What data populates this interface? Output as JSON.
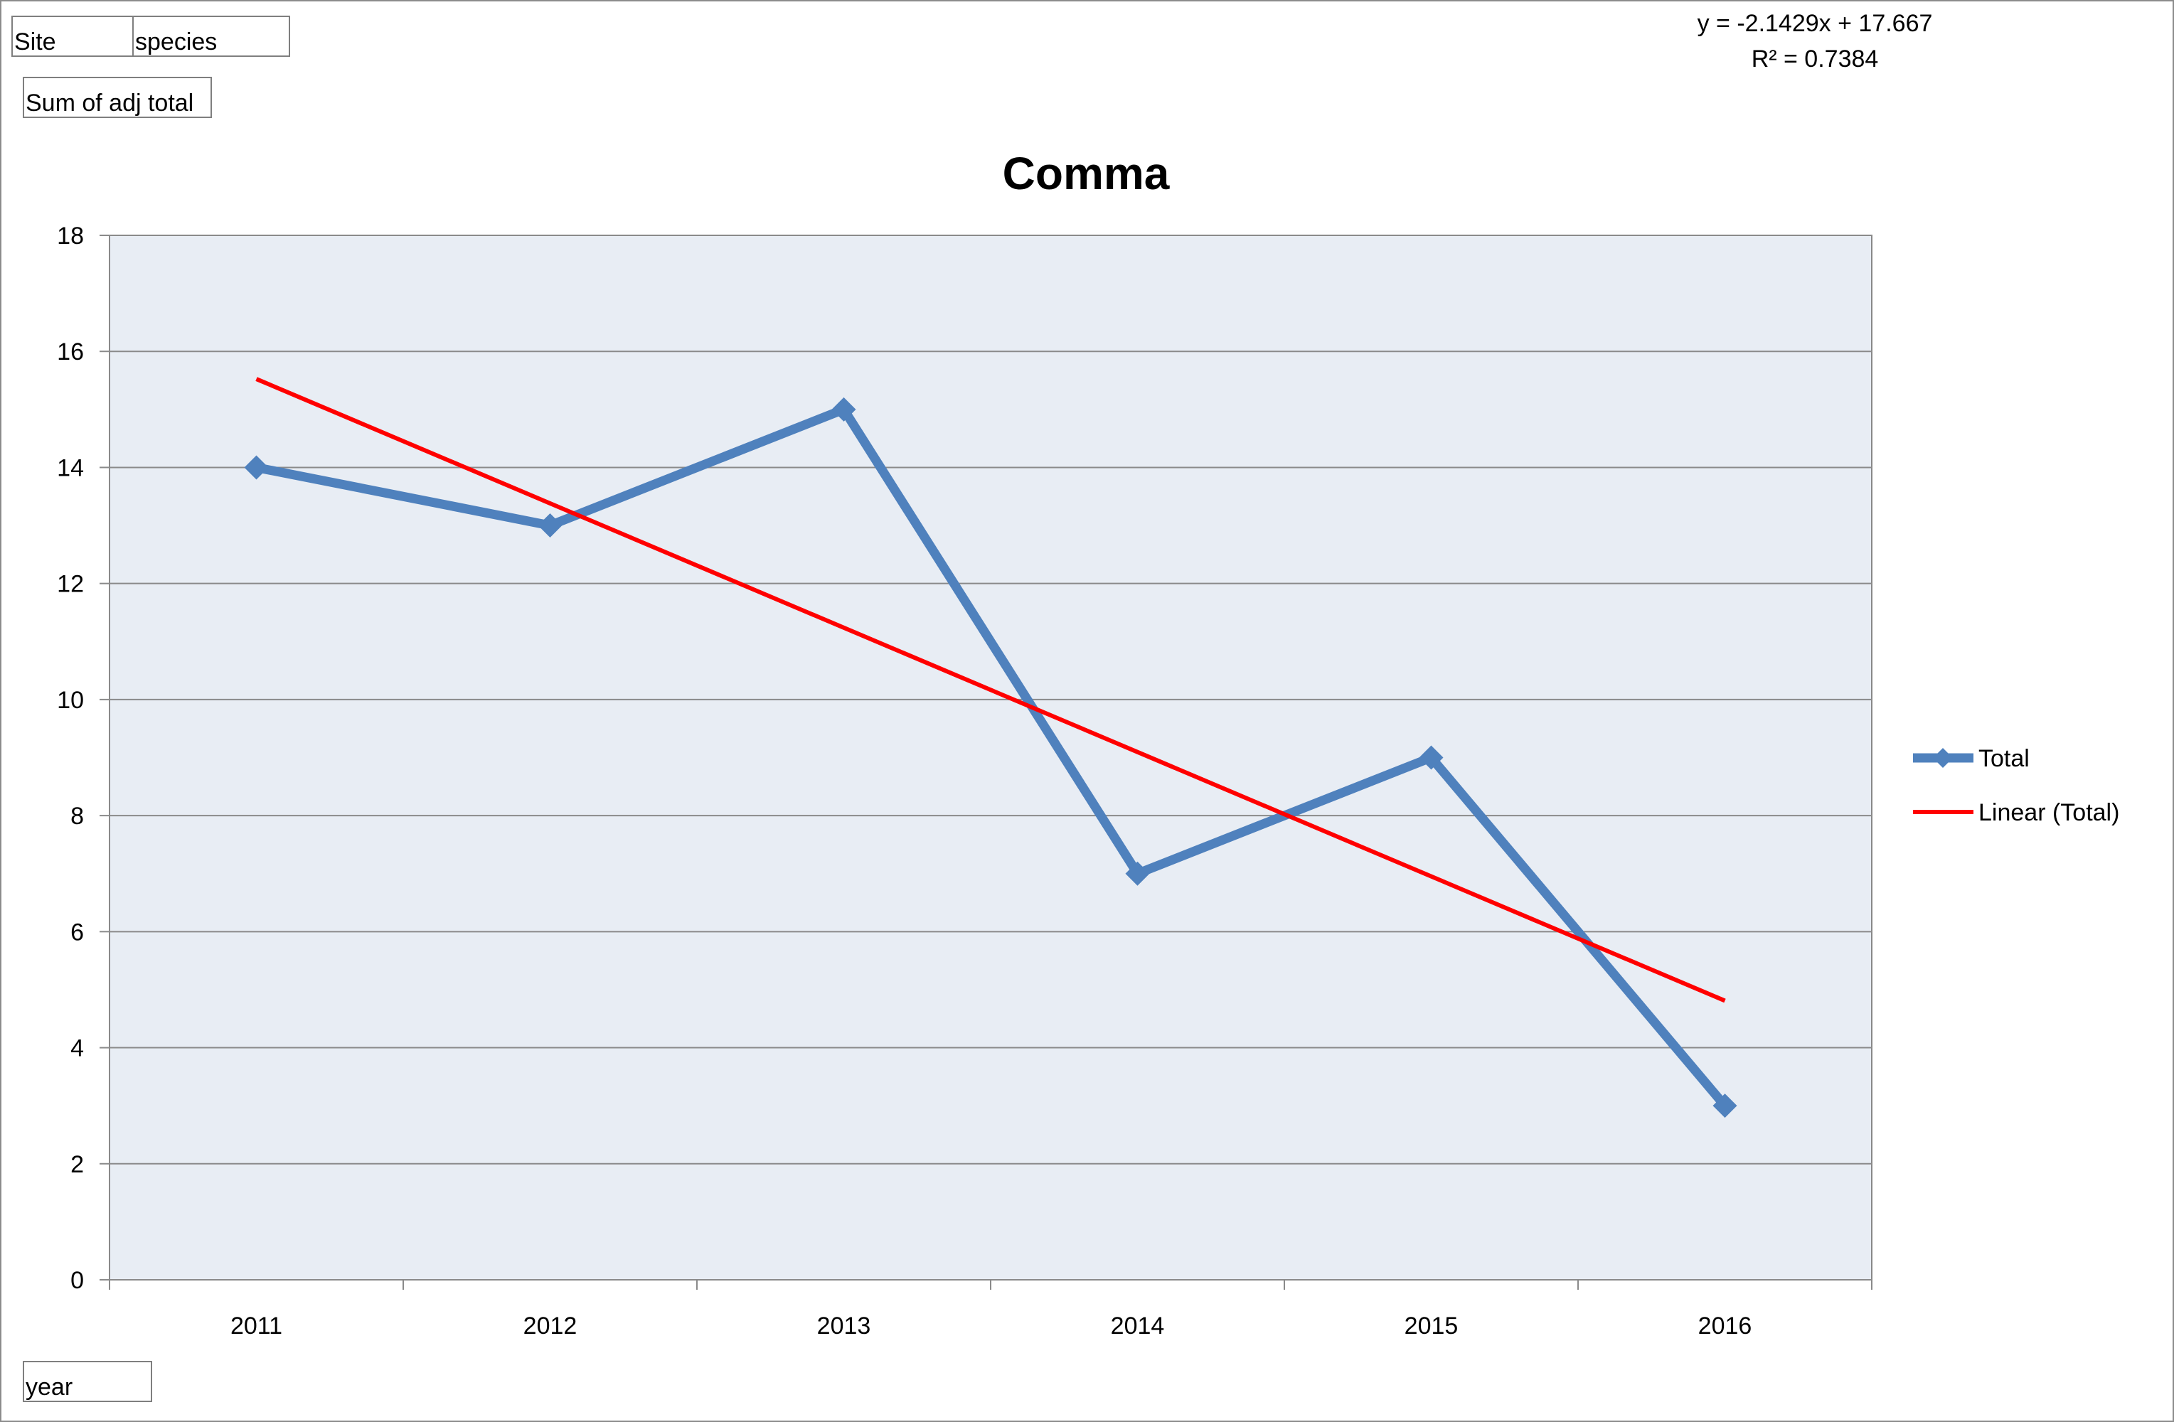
{
  "pivot_fields": {
    "filter_site": "Site",
    "filter_species": "species",
    "data_field": "Sum of adj total",
    "axis_field": "year"
  },
  "chart_data": {
    "type": "line",
    "title": "Comma",
    "categories": [
      "2011",
      "2012",
      "2013",
      "2014",
      "2015",
      "2016"
    ],
    "series": [
      {
        "name": "Total",
        "values": [
          14,
          13,
          15,
          7,
          9,
          3
        ],
        "color": "#4f81bd",
        "marker": "diamond"
      }
    ],
    "trendline": {
      "name": "Linear (Total)",
      "type": "linear",
      "slope": -2.1429,
      "intercept": 17.667,
      "equation": "y = -2.1429x + 17.667",
      "r_squared": "R² = 0.7384",
      "color": "#ff0000"
    },
    "ylim": [
      0,
      18
    ],
    "yticks": [
      0,
      2,
      4,
      6,
      8,
      10,
      12,
      14,
      16,
      18
    ],
    "grid": true,
    "plot_background": "#e8edf4",
    "legend_position": "right",
    "xlabel": "",
    "ylabel": ""
  }
}
